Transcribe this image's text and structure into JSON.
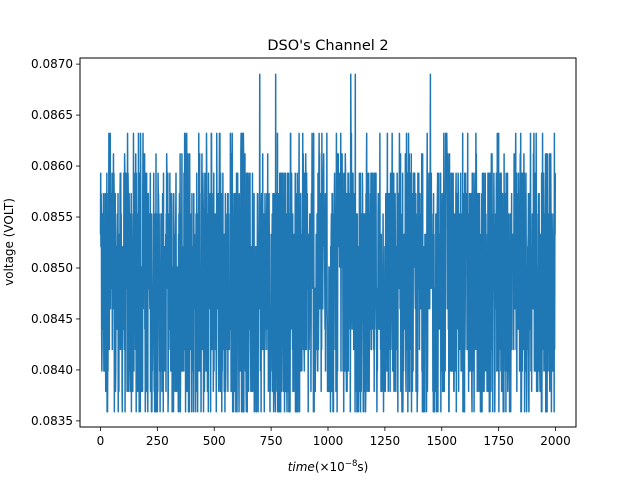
{
  "chart_data": {
    "type": "line",
    "title": "DSO's Channel 2",
    "xlabel_text": "time",
    "xlabel_unit": "(×10",
    "xlabel_exp": "−8",
    "xlabel_unit_end": "s)",
    "ylabel": "voltage (VOLT)",
    "xlim": [
      -90,
      2090
    ],
    "ylim": [
      0.08344,
      0.08706
    ],
    "x_ticks": [
      0,
      250,
      500,
      750,
      1000,
      1250,
      1500,
      1750,
      2000
    ],
    "x_tick_labels": [
      "0",
      "250",
      "500",
      "750",
      "1000",
      "1250",
      "1500",
      "1750",
      "2000"
    ],
    "y_ticks": [
      0.0835,
      0.084,
      0.0845,
      0.085,
      0.0855,
      0.086,
      0.0865,
      0.087
    ],
    "y_tick_labels": [
      "0.0835",
      "0.0840",
      "0.0845",
      "0.0850",
      "0.0855",
      "0.0860",
      "0.0865",
      "0.0870"
    ],
    "grid": false,
    "series": [
      {
        "color": "#1f77b4",
        "x_start": 0,
        "x_end": 2000,
        "num_points": 2001,
        "min": 0.08359,
        "max": 0.0869,
        "levels": [
          0.08359,
          0.08379,
          0.08399,
          0.0842,
          0.0844,
          0.0846,
          0.0848,
          0.08501,
          0.08521,
          0.08533,
          0.08553,
          0.08573,
          0.08593,
          0.08612,
          0.08632,
          0.08671,
          0.0869
        ],
        "peaks_x": [
          700,
          770,
          1100,
          1120,
          1450
        ]
      }
    ]
  }
}
